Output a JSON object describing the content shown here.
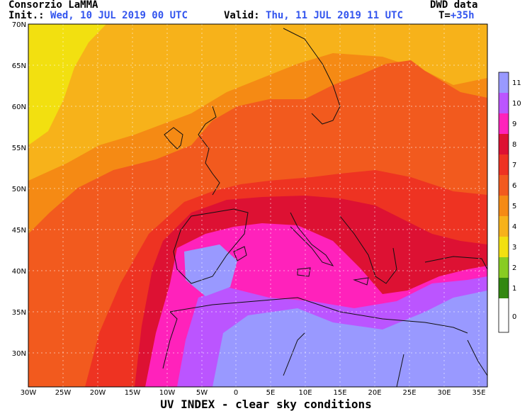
{
  "header": {
    "org": "Consorzio LaMMA",
    "source": "DWD data",
    "init_label": "Init.:",
    "init_value": "Wed, 10 JUL 2019   00 UTC",
    "valid_label": "Valid:",
    "valid_value": "Thu, 11 JUL 2019   11 UTC",
    "lead_label": "T=",
    "lead_value": "+35h"
  },
  "map": {
    "title": "UV INDEX - clear sky conditions",
    "lon_ticks": [
      "30W",
      "25W",
      "20W",
      "15W",
      "10W",
      "5W",
      "0",
      "5E",
      "10E",
      "15E",
      "20E",
      "25E",
      "30E",
      "35E"
    ],
    "lat_ticks": [
      "70N",
      "65N",
      "60N",
      "55N",
      "50N",
      "45N",
      "40N",
      "35N",
      "30N"
    ],
    "levels": [
      {
        "label": "11",
        "color": "#9999ff"
      },
      {
        "label": "10",
        "color": "#bb55ff"
      },
      {
        "label": "9",
        "color": "#ff22bb"
      },
      {
        "label": "8",
        "color": "#dd1133"
      },
      {
        "label": "7",
        "color": "#ee3322"
      },
      {
        "label": "6",
        "color": "#f25a1e"
      },
      {
        "label": "5",
        "color": "#f58a14"
      },
      {
        "label": "4",
        "color": "#f7b21a"
      },
      {
        "label": "3",
        "color": "#f2e010"
      },
      {
        "label": "2",
        "color": "#88cc22"
      },
      {
        "label": "1",
        "color": "#338811"
      },
      {
        "label": "0",
        "color": "#ffffff"
      }
    ]
  }
}
